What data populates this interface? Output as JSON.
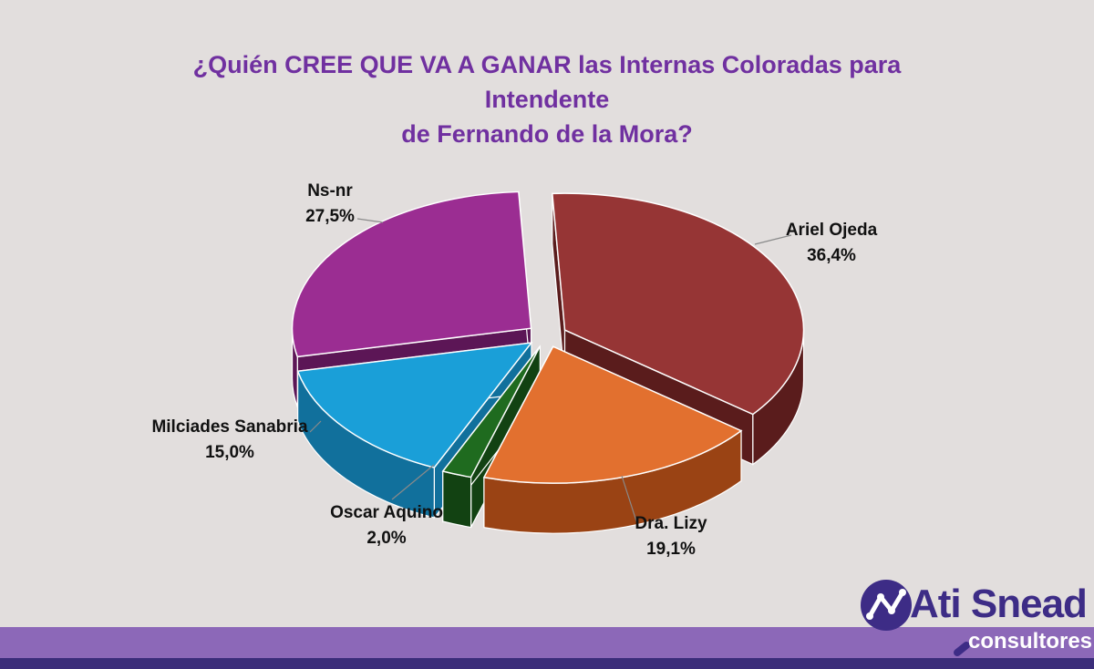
{
  "chart_data": {
    "type": "pie",
    "title_lines": [
      "¿Quién CREE QUE VA A GANAR las Internas Coloradas para Intendente",
      "de Fernando de la Mora?"
    ],
    "slices": [
      {
        "name": "Ariel Ojeda",
        "value": 36.4,
        "label": "36,4%",
        "color": "#963535",
        "side": "#5a1c1c"
      },
      {
        "name": "Dra. Lizy",
        "value": 19.1,
        "label": "19,1%",
        "color": "#e2702f",
        "side": "#9a4314"
      },
      {
        "name": "Oscar Aquino",
        "value": 2.0,
        "label": "2,0%",
        "color": "#1f6b1f",
        "side": "#124212"
      },
      {
        "name": "Milciades Sanabria",
        "value": 15.0,
        "label": "15,0%",
        "color": "#1a9fd8",
        "side": "#11709c"
      },
      {
        "name": "Ns-nr",
        "value": 27.5,
        "label": "27,5%",
        "color": "#9b2d92",
        "side": "#5c1656"
      }
    ]
  },
  "brand": {
    "name": "Ati Snead",
    "tagline": "consultores",
    "colors": {
      "primary": "#3d2c86",
      "band": "#8c68b8",
      "band_dark": "#3b2d7a"
    }
  }
}
